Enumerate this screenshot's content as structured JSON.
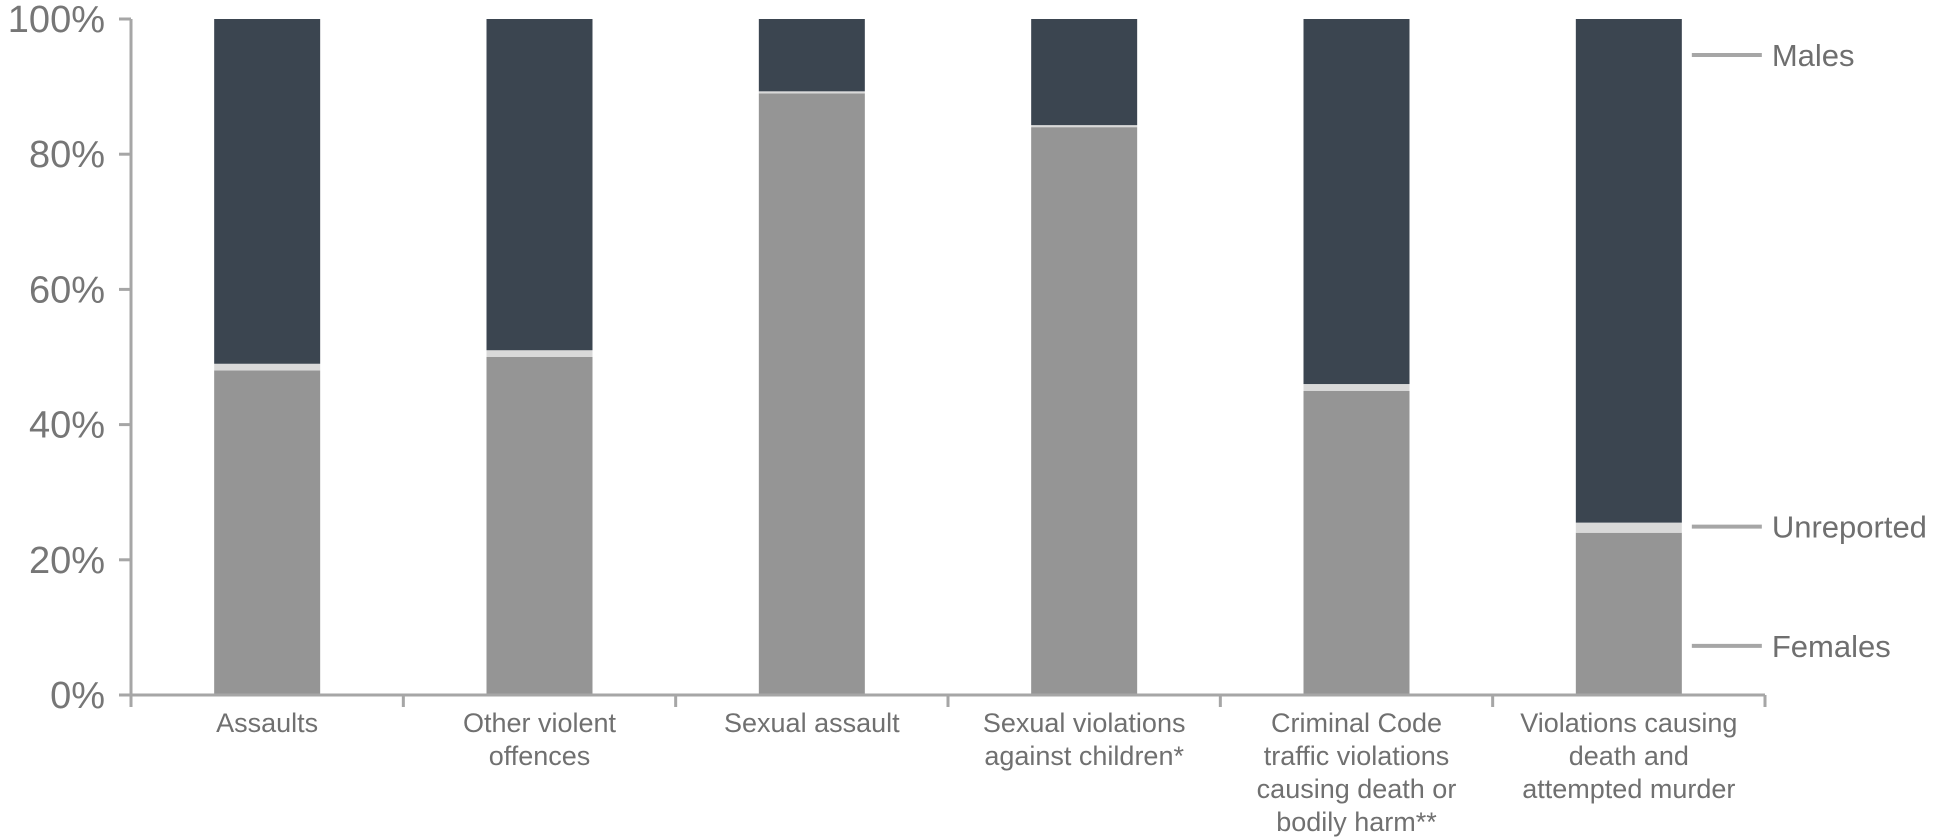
{
  "chart_data": {
    "type": "bar",
    "stacked": true,
    "normalized": true,
    "categories": [
      [
        "Assaults"
      ],
      [
        "Other violent",
        "offences"
      ],
      [
        "Sexual assault"
      ],
      [
        "Sexual violations",
        "against children*"
      ],
      [
        "Criminal Code",
        "traffic violations",
        "causing death or",
        "bodily harm**"
      ],
      [
        "Violations causing",
        "death and",
        "attempted murder"
      ]
    ],
    "series": [
      {
        "name": "Females",
        "color": "#959595",
        "values": [
          48,
          50,
          89,
          84,
          45,
          24
        ]
      },
      {
        "name": "Unreported",
        "color": "#d9d9d9",
        "values": [
          1,
          1,
          0.3,
          0.3,
          1,
          1.5
        ]
      },
      {
        "name": "Males",
        "color": "#3b4550",
        "values": [
          51,
          49,
          10.7,
          15.7,
          54,
          74.5
        ]
      }
    ],
    "ylim": [
      0,
      100
    ],
    "yticks": [
      0,
      20,
      40,
      60,
      80,
      100
    ],
    "ytick_labels": [
      "0%",
      "20%",
      "40%",
      "60%",
      "80%",
      "100%"
    ],
    "legend": {
      "placement": "right",
      "entries": [
        "Males",
        "Unreported",
        "Females"
      ]
    },
    "grid": false,
    "title": "",
    "xlabel": "",
    "ylabel": ""
  }
}
